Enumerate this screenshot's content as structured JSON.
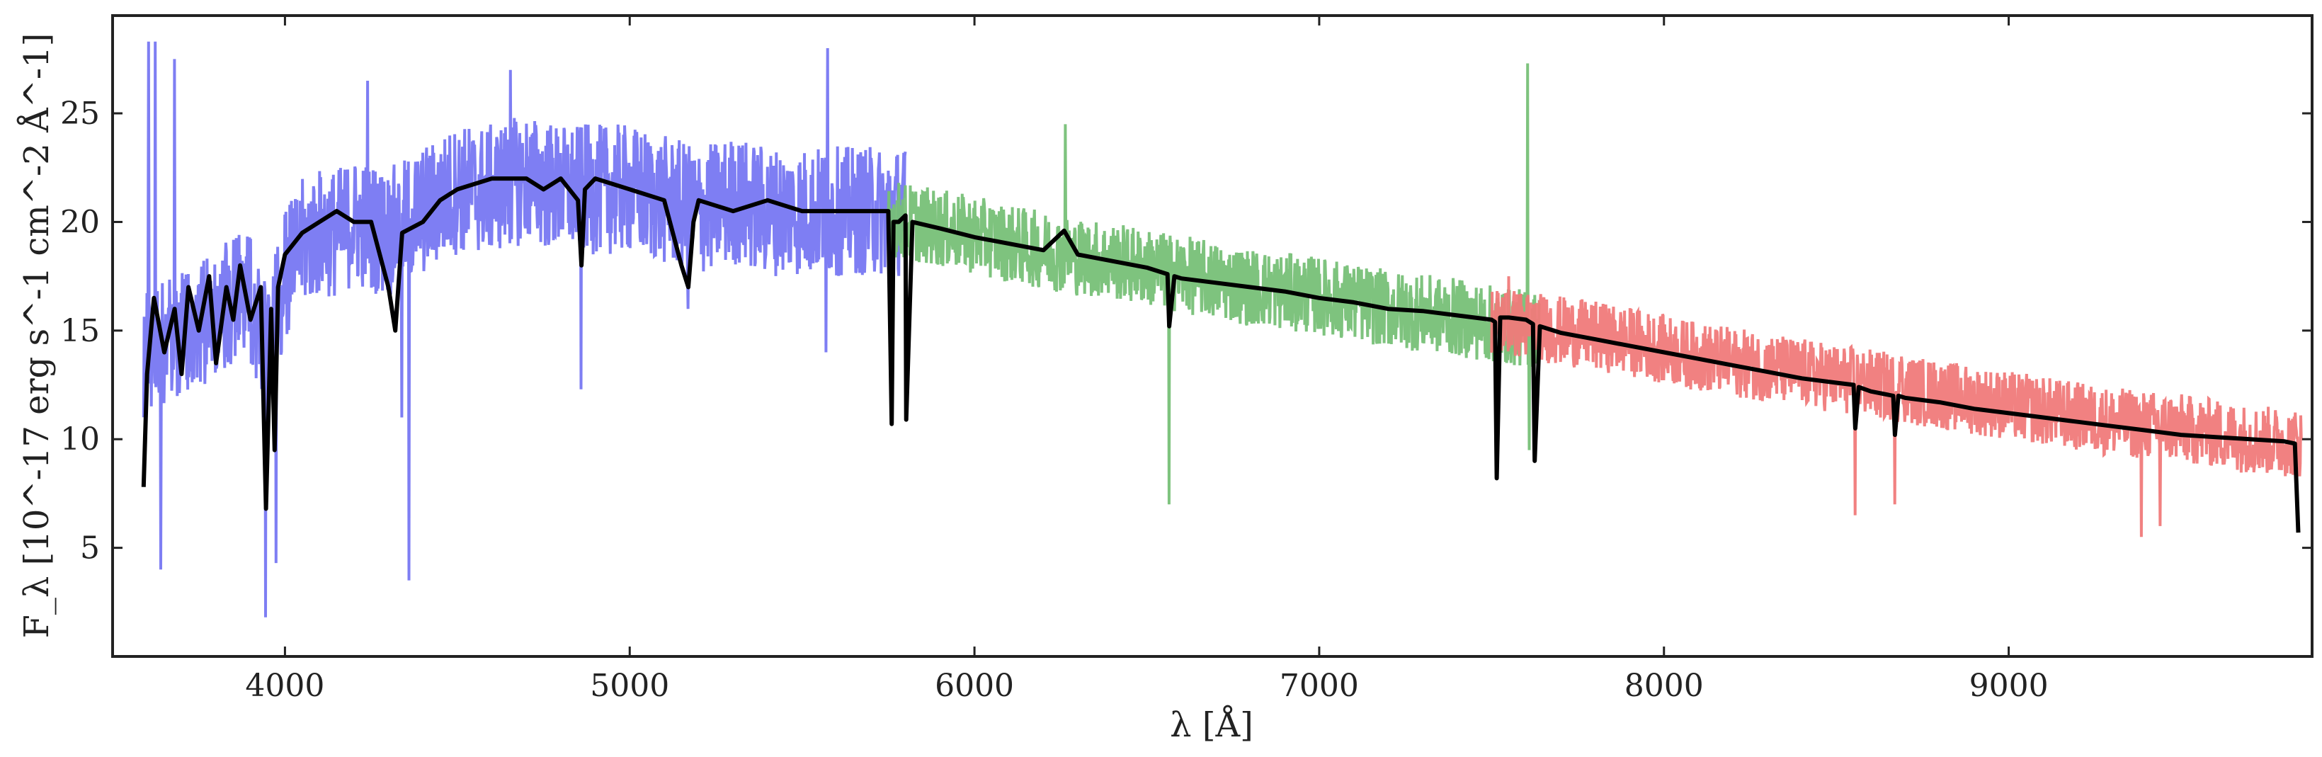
{
  "chart_data": {
    "type": "line",
    "xlabel": "λ [Å]",
    "ylabel": "F_λ [10^-17 erg s^-1 cm^-2 Å^-1]",
    "xlim": [
      3500,
      9880
    ],
    "ylim": [
      0,
      29.5
    ],
    "x_ticks": [
      4000,
      5000,
      6000,
      7000,
      8000,
      9000
    ],
    "y_ticks": [
      5,
      10,
      15,
      20,
      25
    ],
    "grid": false,
    "colors": {
      "blue_arm": "#7777f2",
      "green_arm": "#77c077",
      "red_arm": "#f07a7a",
      "model": "#000000",
      "axes": "#222222"
    },
    "series": [
      {
        "key": "blue_arm",
        "x": [
          3590,
          3650,
          3700,
          3750,
          3800,
          3850,
          3900,
          3950,
          4000,
          4050,
          4100,
          4150,
          4200,
          4300,
          4400,
          4500,
          4600,
          4700,
          4800,
          4900,
          5000,
          5100,
          5200,
          5300,
          5400,
          5500,
          5600,
          5700,
          5800
        ],
        "y": [
          14.0,
          14.5,
          15.0,
          15.5,
          15.5,
          16.5,
          16.5,
          14.0,
          17.5,
          19.0,
          19.5,
          19.5,
          20.0,
          19.5,
          20.5,
          21.5,
          21.5,
          22.0,
          21.5,
          21.5,
          21.5,
          21.0,
          20.5,
          21.0,
          20.5,
          20.5,
          20.5,
          20.5,
          20.5
        ],
        "spread": 3.0,
        "spikes": [
          [
            3605,
            28.3
          ],
          [
            3625,
            28.3
          ],
          [
            3640,
            4.0
          ],
          [
            3680,
            27.5
          ],
          [
            3945,
            1.8
          ],
          [
            3975,
            4.3
          ],
          [
            4240,
            26.5
          ],
          [
            4340,
            11.0
          ],
          [
            4360,
            3.5
          ],
          [
            4655,
            27.0
          ],
          [
            4860,
            12.3
          ],
          [
            5170,
            16.0
          ],
          [
            5575,
            28.0
          ],
          [
            5570,
            14.0
          ]
        ]
      },
      {
        "key": "green_arm",
        "x": [
          5750,
          5900,
          6000,
          6100,
          6200,
          6300,
          6400,
          6500,
          6600,
          6700,
          6800,
          6900,
          7000,
          7100,
          7200,
          7300,
          7400,
          7500,
          7640
        ],
        "y": [
          20.2,
          19.7,
          19.4,
          19.0,
          18.7,
          18.4,
          18.2,
          17.9,
          17.6,
          17.3,
          17.0,
          16.8,
          16.6,
          16.3,
          16.0,
          15.8,
          15.6,
          15.3,
          15.0
        ],
        "spread": 1.8,
        "spikes": [
          [
            6265,
            24.5
          ],
          [
            6565,
            7.0
          ],
          [
            7605,
            27.3
          ],
          [
            7610,
            9.5
          ]
        ]
      },
      {
        "key": "red_arm",
        "x": [
          7500,
          7700,
          7900,
          8100,
          8300,
          8500,
          8700,
          8900,
          9100,
          9300,
          9500,
          9700,
          9850
        ],
        "y": [
          15.5,
          15.0,
          14.5,
          13.8,
          13.3,
          12.8,
          12.3,
          11.8,
          11.3,
          10.8,
          10.5,
          10.0,
          9.8
        ],
        "spread": 1.6,
        "spikes": [
          [
            7550,
            17.5
          ],
          [
            8555,
            6.5
          ],
          [
            8670,
            7.0
          ],
          [
            8690,
            13.8
          ],
          [
            9385,
            5.5
          ],
          [
            9440,
            6.0
          ],
          [
            9470,
            11.8
          ]
        ]
      },
      {
        "key": "model",
        "x": [
          3590,
          3600,
          3620,
          3650,
          3680,
          3700,
          3720,
          3750,
          3780,
          3800,
          3830,
          3850,
          3870,
          3900,
          3930,
          3945,
          3960,
          3970,
          3980,
          4000,
          4050,
          4100,
          4150,
          4200,
          4250,
          4300,
          4320,
          4340,
          4400,
          4450,
          4500,
          4600,
          4700,
          4750,
          4800,
          4850,
          4860,
          4870,
          4900,
          5000,
          5100,
          5150,
          5170,
          5185,
          5200,
          5300,
          5400,
          5500,
          5600,
          5700,
          5750,
          5760,
          5765,
          5780,
          5800,
          5802,
          5820,
          5900,
          6000,
          6100,
          6200,
          6260,
          6300,
          6400,
          6500,
          6560,
          6565,
          6580,
          6600,
          6700,
          6800,
          6900,
          7000,
          7100,
          7200,
          7300,
          7400,
          7500,
          7510,
          7515,
          7525,
          7550,
          7600,
          7620,
          7625,
          7640,
          7700,
          7800,
          7900,
          8000,
          8100,
          8200,
          8300,
          8400,
          8500,
          8550,
          8555,
          8565,
          8600,
          8665,
          8670,
          8680,
          8700,
          8800,
          8900,
          9000,
          9100,
          9200,
          9300,
          9400,
          9500,
          9600,
          9700,
          9800,
          9830,
          9840
        ],
        "y": [
          7.8,
          13.0,
          16.5,
          14.0,
          16.0,
          13.0,
          17.0,
          15.0,
          17.5,
          13.5,
          17.0,
          15.5,
          18.0,
          15.5,
          17.0,
          6.8,
          16.0,
          9.5,
          17.0,
          18.5,
          19.5,
          20.0,
          20.5,
          20.0,
          20.0,
          17.0,
          15.0,
          19.5,
          20.0,
          21.0,
          21.5,
          22.0,
          22.0,
          21.5,
          22.0,
          21.0,
          18.0,
          21.5,
          22.0,
          21.5,
          21.0,
          18.0,
          17.0,
          20.0,
          21.0,
          20.5,
          21.0,
          20.5,
          20.5,
          20.5,
          20.5,
          10.7,
          20.0,
          20.0,
          20.3,
          10.9,
          20.0,
          19.7,
          19.3,
          19.0,
          18.7,
          19.6,
          18.5,
          18.2,
          17.9,
          17.6,
          15.2,
          17.5,
          17.4,
          17.2,
          17.0,
          16.8,
          16.5,
          16.3,
          16.0,
          15.9,
          15.7,
          15.5,
          15.4,
          8.2,
          15.6,
          15.6,
          15.5,
          15.3,
          9.0,
          15.2,
          14.9,
          14.6,
          14.3,
          14.0,
          13.7,
          13.4,
          13.1,
          12.8,
          12.6,
          12.5,
          10.5,
          12.4,
          12.2,
          12.0,
          10.2,
          12.0,
          11.9,
          11.7,
          11.4,
          11.2,
          11.0,
          10.8,
          10.6,
          10.4,
          10.2,
          10.1,
          10.0,
          9.9,
          9.8,
          5.7
        ]
      }
    ]
  }
}
